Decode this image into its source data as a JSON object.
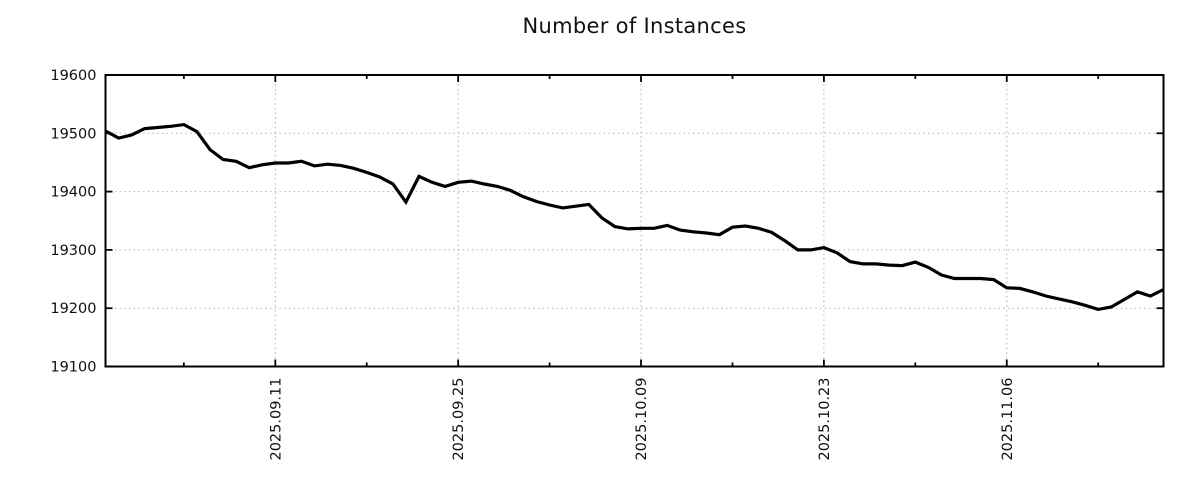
{
  "page": {
    "background_color": "#ffffff"
  },
  "chart_data": {
    "type": "line",
    "title": "Number of Instances",
    "legend": "none",
    "grid": {
      "style": "dotted",
      "color": "#b0b0b0",
      "on_major_ticks_only": true
    },
    "colors": {
      "line": "#000000",
      "axis": "#000000",
      "text": "#111111",
      "background": "#ffffff"
    },
    "x_axis": {
      "tick_labels": [
        "2025.09.11",
        "2025.09.25",
        "2025.10.09",
        "2025.10.23",
        "2025.11.06"
      ],
      "major_tick_indices": [
        13,
        27,
        41,
        55,
        69
      ],
      "minor_tick_indices": [
        6,
        20,
        34,
        48,
        62,
        76
      ],
      "xlim_indices": [
        0,
        81
      ],
      "label_rotation_deg": -90,
      "interval_days_between_major_ticks": 14
    },
    "y_axis": {
      "ticks": [
        19100,
        19200,
        19300,
        19400,
        19500,
        19600
      ],
      "ylim": [
        19100,
        19600
      ]
    },
    "series": [
      {
        "name": "Number of Instances",
        "color": "#000000",
        "line_width": 3.2,
        "values": [
          19504,
          19492,
          19497,
          19508,
          19510,
          19512,
          19515,
          19503,
          19472,
          19455,
          19452,
          19441,
          19446,
          19449,
          19449,
          19452,
          19444,
          19447,
          19445,
          19440,
          19433,
          19425,
          19413,
          19382,
          19426,
          19416,
          19409,
          19416,
          19418,
          19413,
          19409,
          19402,
          19391,
          19383,
          19377,
          19372,
          19375,
          19378,
          19355,
          19340,
          19336,
          19337,
          19337,
          19342,
          19334,
          19331,
          19329,
          19326,
          19339,
          19341,
          19337,
          19330,
          19316,
          19300,
          19300,
          19304,
          19295,
          19280,
          19276,
          19276,
          19274,
          19273,
          19279,
          19270,
          19257,
          19251,
          19251,
          19251,
          19249,
          19235,
          19234,
          19228,
          19221,
          19216,
          19211,
          19205,
          19198,
          19202,
          19215,
          19228,
          19221,
          19232
        ]
      }
    ]
  }
}
